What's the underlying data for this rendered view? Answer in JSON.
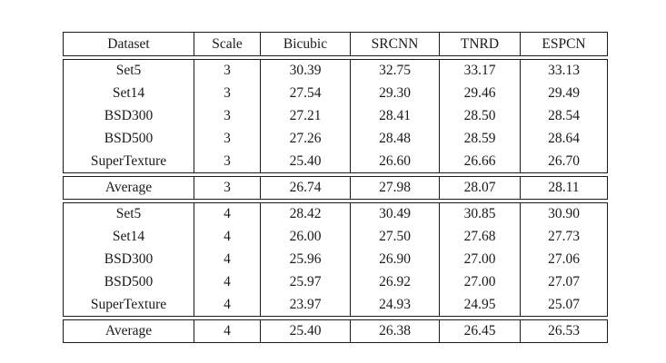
{
  "colors": {
    "border": "#1a1a1a",
    "text": "#1a1a1a",
    "background": "#ffffff"
  },
  "table": {
    "columns": [
      "Dataset",
      "Scale",
      "Bicubic",
      "SRCNN",
      "TNRD",
      "ESPCN"
    ],
    "sections": [
      {
        "name": "scale-3-body",
        "rows": [
          {
            "dataset": "Set5",
            "scale": "3",
            "values": [
              "30.39",
              "32.75",
              "33.17",
              "33.13"
            ],
            "bold_col": 2
          },
          {
            "dataset": "Set14",
            "scale": "3",
            "values": [
              "27.54",
              "29.30",
              "29.46",
              "29.49"
            ],
            "bold_col": 3
          },
          {
            "dataset": "BSD300",
            "scale": "3",
            "values": [
              "27.21",
              "28.41",
              "28.50",
              "28.54"
            ],
            "bold_col": 3
          },
          {
            "dataset": "BSD500",
            "scale": "3",
            "values": [
              "27.26",
              "28.48",
              "28.59",
              "28.64"
            ],
            "bold_col": 3
          },
          {
            "dataset": "SuperTexture",
            "scale": "3",
            "values": [
              "25.40",
              "26.60",
              "26.66",
              "26.70"
            ],
            "bold_col": 3
          }
        ]
      },
      {
        "name": "scale-3-average",
        "rows": [
          {
            "dataset": "Average",
            "scale": "3",
            "values": [
              "26.74",
              "27.98",
              "28.07",
              "28.11"
            ],
            "bold_col": 3
          }
        ]
      },
      {
        "name": "scale-4-body",
        "rows": [
          {
            "dataset": "Set5",
            "scale": "4",
            "values": [
              "28.42",
              "30.49",
              "30.85",
              "30.90"
            ],
            "bold_col": 3
          },
          {
            "dataset": "Set14",
            "scale": "4",
            "values": [
              "26.00",
              "27.50",
              "27.68",
              "27.73"
            ],
            "bold_col": 3
          },
          {
            "dataset": "BSD300",
            "scale": "4",
            "values": [
              "25.96",
              "26.90",
              "27.00",
              "27.06"
            ],
            "bold_col": 3
          },
          {
            "dataset": "BSD500",
            "scale": "4",
            "values": [
              "25.97",
              "26.92",
              "27.00",
              "27.07"
            ],
            "bold_col": 3
          },
          {
            "dataset": "SuperTexture",
            "scale": "4",
            "values": [
              "23.97",
              "24.93",
              "24.95",
              "25.07"
            ],
            "bold_col": 3
          }
        ]
      },
      {
        "name": "scale-4-average",
        "rows": [
          {
            "dataset": "Average",
            "scale": "4",
            "values": [
              "25.40",
              "26.38",
              "26.45",
              "26.53"
            ],
            "bold_col": 3
          }
        ]
      }
    ]
  }
}
